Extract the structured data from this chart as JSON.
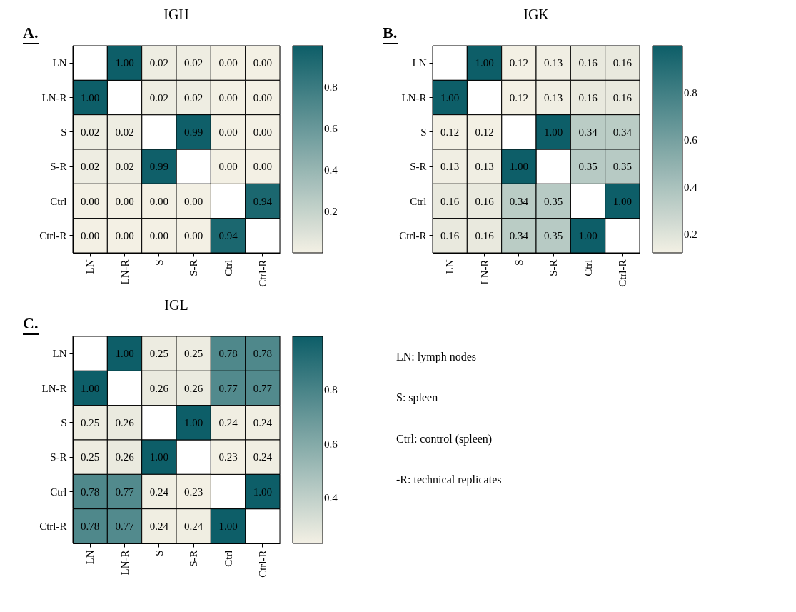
{
  "chart_data": [
    {
      "type": "heatmap",
      "title": "IGH",
      "annotations": [
        "A."
      ],
      "colors": [
        "#f3f0e4",
        "#0d5e68"
      ],
      "categories": [
        "LN",
        "LN-R",
        "S",
        "S-R",
        "Ctrl",
        "Ctrl-R"
      ],
      "y_categories": [
        "LN",
        "LN-R",
        "S",
        "S-R",
        "Ctrl",
        "Ctrl-R"
      ],
      "cells": [
        [
          null,
          1.0,
          0.02,
          0.02,
          0.0,
          0.0
        ],
        [
          1.0,
          null,
          0.02,
          0.02,
          0.0,
          0.0
        ],
        [
          0.02,
          0.02,
          null,
          0.99,
          0.0,
          0.0
        ],
        [
          0.02,
          0.02,
          0.99,
          null,
          0.0,
          0.0
        ],
        [
          0.0,
          0.0,
          0.0,
          0.0,
          null,
          0.94
        ],
        [
          0.0,
          0.0,
          0.0,
          0.0,
          0.94,
          null
        ]
      ],
      "cell_labels": [
        [
          null,
          "1.00",
          "0.02",
          "0.02",
          "0.00",
          "0.00"
        ],
        [
          "1.00",
          null,
          "0.02",
          "0.02",
          "0.00",
          "0.00"
        ],
        [
          "0.02",
          "0.02",
          null,
          "0.99",
          "0.00",
          "0.00"
        ],
        [
          "0.02",
          "0.02",
          "0.99",
          null,
          "0.00",
          "0.00"
        ],
        [
          "0.00",
          "0.00",
          "0.00",
          "0.00",
          null,
          "0.94"
        ],
        [
          "0.00",
          "0.00",
          "0.00",
          "0.00",
          "0.94",
          null
        ]
      ],
      "clim": [
        0.0,
        1.0
      ],
      "cticks": [
        0.2,
        0.4,
        0.6,
        0.8
      ]
    },
    {
      "type": "heatmap",
      "title": "IGK",
      "annotations": [
        "B."
      ],
      "colors": [
        "#f3f0e4",
        "#0d5e68"
      ],
      "categories": [
        "LN",
        "LN-R",
        "S",
        "S-R",
        "Ctrl",
        "Ctrl-R"
      ],
      "y_categories": [
        "LN",
        "LN-R",
        "S",
        "S-R",
        "Ctrl",
        "Ctrl-R"
      ],
      "cells": [
        [
          null,
          1.0,
          0.12,
          0.13,
          0.16,
          0.16
        ],
        [
          1.0,
          null,
          0.12,
          0.13,
          0.16,
          0.16
        ],
        [
          0.12,
          0.12,
          null,
          1.0,
          0.34,
          0.34
        ],
        [
          0.13,
          0.13,
          1.0,
          null,
          0.35,
          0.35
        ],
        [
          0.16,
          0.16,
          0.34,
          0.35,
          null,
          1.0
        ],
        [
          0.16,
          0.16,
          0.34,
          0.35,
          1.0,
          null
        ]
      ],
      "cell_labels": [
        [
          null,
          "1.00",
          "0.12",
          "0.13",
          "0.16",
          "0.16"
        ],
        [
          "1.00",
          null,
          "0.12",
          "0.13",
          "0.16",
          "0.16"
        ],
        [
          "0.12",
          "0.12",
          null,
          "1.00",
          "0.34",
          "0.34"
        ],
        [
          "0.13",
          "0.13",
          "1.00",
          null,
          "0.35",
          "0.35"
        ],
        [
          "0.16",
          "0.16",
          "0.34",
          "0.35",
          null,
          "1.00"
        ],
        [
          "0.16",
          "0.16",
          "0.34",
          "0.35",
          "1.00",
          null
        ]
      ],
      "clim": [
        0.12,
        1.0
      ],
      "cticks": [
        0.2,
        0.4,
        0.6,
        0.8
      ]
    },
    {
      "type": "heatmap",
      "title": "IGL",
      "annotations": [
        "C."
      ],
      "colors": [
        "#f3f0e4",
        "#0d5e68"
      ],
      "categories": [
        "LN",
        "LN-R",
        "S",
        "S-R",
        "Ctrl",
        "Ctrl-R"
      ],
      "y_categories": [
        "LN",
        "LN-R",
        "S",
        "S-R",
        "Ctrl",
        "Ctrl-R"
      ],
      "cells": [
        [
          null,
          1.0,
          0.25,
          0.25,
          0.78,
          0.78
        ],
        [
          1.0,
          null,
          0.26,
          0.26,
          0.77,
          0.77
        ],
        [
          0.25,
          0.26,
          null,
          1.0,
          0.24,
          0.24
        ],
        [
          0.25,
          0.26,
          1.0,
          null,
          0.23,
          0.24
        ],
        [
          0.78,
          0.77,
          0.24,
          0.23,
          null,
          1.0
        ],
        [
          0.78,
          0.77,
          0.24,
          0.24,
          1.0,
          null
        ]
      ],
      "cell_labels": [
        [
          null,
          "1.00",
          "0.25",
          "0.25",
          "0.78",
          "0.78"
        ],
        [
          "1.00",
          null,
          "0.26",
          "0.26",
          "0.77",
          "0.77"
        ],
        [
          "0.25",
          "0.26",
          null,
          "1.00",
          "0.24",
          "0.24"
        ],
        [
          "0.25",
          "0.26",
          "1.00",
          null,
          "0.23",
          "0.24"
        ],
        [
          "0.78",
          "0.77",
          "0.24",
          "0.23",
          null,
          "1.00"
        ],
        [
          "0.78",
          "0.77",
          "0.24",
          "0.24",
          "1.00",
          null
        ]
      ],
      "clim": [
        0.23,
        1.0
      ],
      "cticks": [
        0.4,
        0.6,
        0.8
      ]
    },
    {
      "type": "other",
      "annotations": [
        "LN: lymph nodes",
        "S: spleen",
        "Ctrl: control (spleen)",
        "-R: technical replicates"
      ]
    }
  ]
}
